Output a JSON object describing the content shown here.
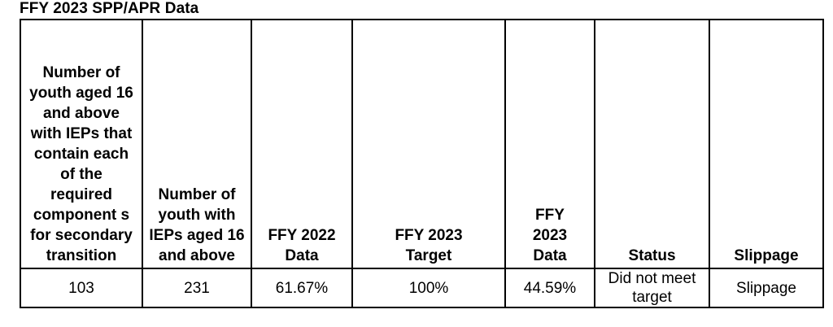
{
  "document": {
    "title": "FFY 2023 SPP/APR Data"
  },
  "table": {
    "headers": [
      "Number of youth aged 16 and above with IEPs that contain each of the required component s for secondary transition",
      "Number of youth with IEPs aged 16 and above",
      "FFY 2022 Data",
      "FFY 2023 Target",
      "FFY 2023 Data",
      "Status",
      "Slippage"
    ],
    "row": [
      "103",
      "231",
      "61.67%",
      "100%",
      "44.59%",
      "Did not meet target",
      "Slippage"
    ]
  }
}
